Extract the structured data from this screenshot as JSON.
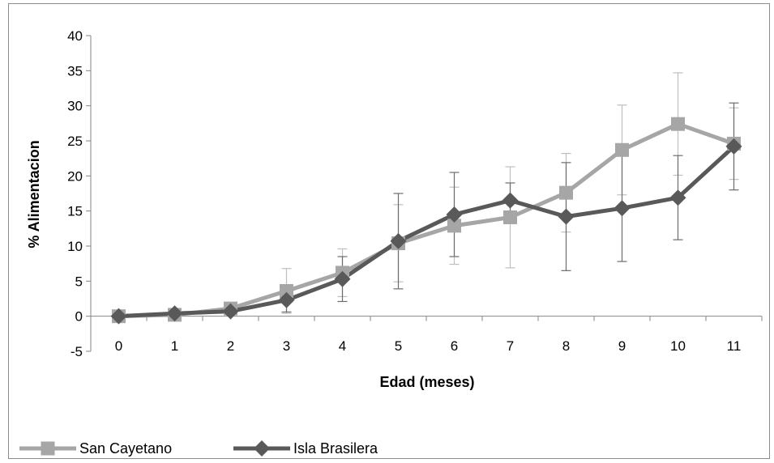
{
  "chart_data": {
    "type": "line",
    "title": "",
    "xlabel": "Edad (meses)",
    "ylabel": "% Alimentacion",
    "x": [
      0,
      1,
      2,
      3,
      4,
      5,
      6,
      7,
      8,
      9,
      10,
      11
    ],
    "x_tick_labels": [
      "0",
      "1",
      "2",
      "3",
      "4",
      "5",
      "6",
      "7",
      "8",
      "9",
      "10",
      "11"
    ],
    "ylim": [
      -5,
      40
    ],
    "y_ticks": [
      -5,
      0,
      5,
      10,
      15,
      20,
      25,
      30,
      35,
      40
    ],
    "y_tick_labels": [
      "-5",
      "0",
      "5",
      "10",
      "15",
      "20",
      "25",
      "30",
      "35",
      "40"
    ],
    "grid": false,
    "legend_position": "bottom-left",
    "series": [
      {
        "name": "San Cayetano",
        "color": "#a6a6a6",
        "marker": "square",
        "values": [
          0,
          0.2,
          1.1,
          3.6,
          6.2,
          10.4,
          12.9,
          14.1,
          17.6,
          23.7,
          27.4,
          24.6
        ],
        "error": [
          0,
          0.3,
          0.6,
          3.2,
          3.4,
          5.5,
          5.5,
          7.2,
          5.6,
          6.4,
          7.3,
          5.1
        ]
      },
      {
        "name": "Isla Brasilera",
        "color": "#595959",
        "marker": "diamond",
        "values": [
          0,
          0.4,
          0.7,
          2.3,
          5.3,
          10.7,
          14.5,
          16.5,
          14.2,
          15.4,
          16.9,
          24.2
        ],
        "error": [
          0,
          0.3,
          0.4,
          1.7,
          3.2,
          6.8,
          6.0,
          2.5,
          7.7,
          7.6,
          6.0,
          6.2
        ]
      }
    ]
  }
}
